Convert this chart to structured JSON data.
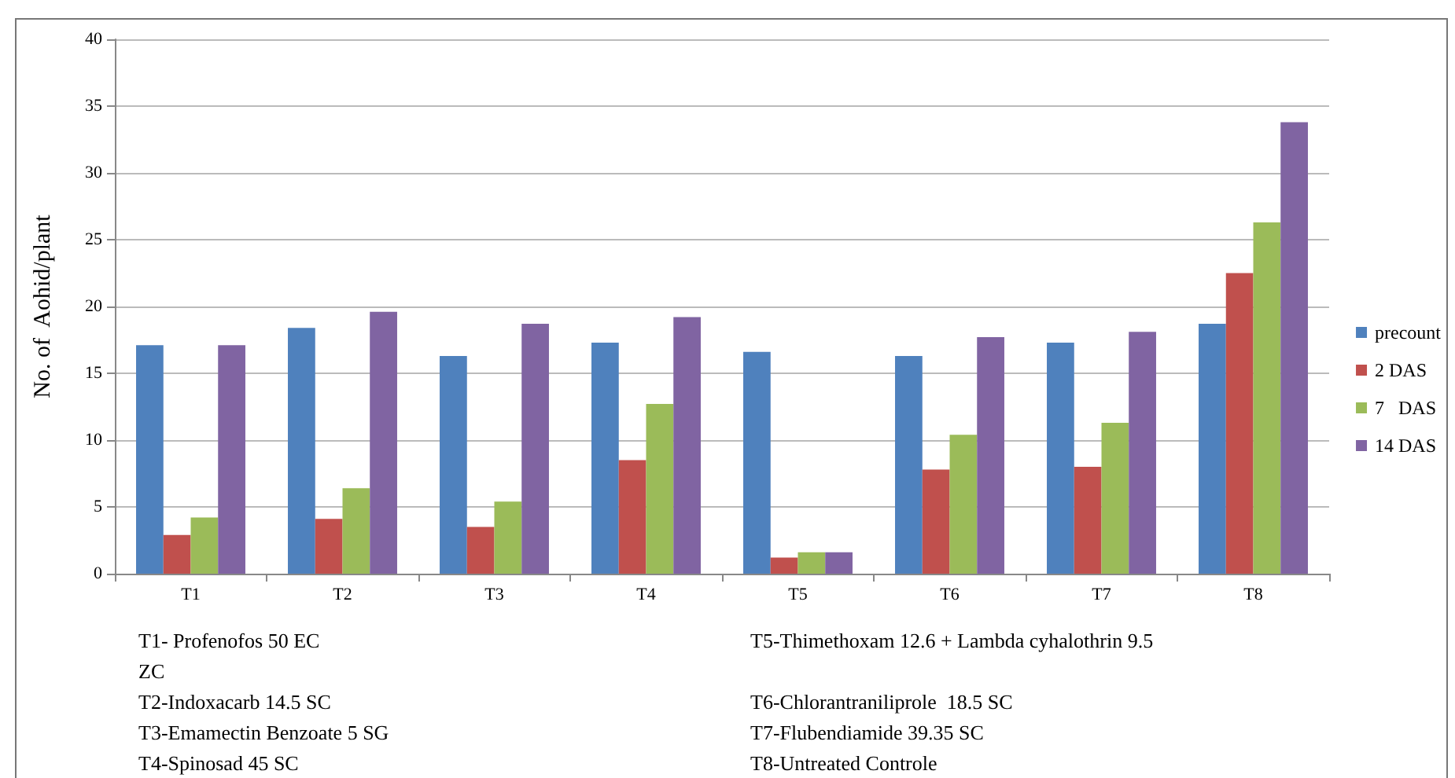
{
  "chart_data": {
    "type": "bar",
    "ylabel": "No. of  Aohid/plant",
    "categories": [
      "T1",
      "T2",
      "T3",
      "T4",
      "T5",
      "T6",
      "T7",
      "T8"
    ],
    "series": [
      {
        "name": "precount",
        "color": "#4f81bd",
        "values": [
          17.1,
          18.4,
          16.3,
          17.3,
          16.6,
          16.3,
          17.3,
          18.7
        ]
      },
      {
        "name": "2 DAS",
        "color": "#c0504d",
        "values": [
          2.9,
          4.1,
          3.5,
          8.5,
          1.2,
          7.8,
          8.0,
          22.5
        ]
      },
      {
        "name": "7   DAS",
        "color": "#9bbb59",
        "values": [
          4.2,
          6.4,
          5.4,
          12.7,
          1.6,
          10.4,
          11.3,
          26.3
        ]
      },
      {
        "name": "14 DAS",
        "color": "#8064a2",
        "values": [
          17.1,
          19.6,
          18.7,
          19.2,
          1.6,
          17.7,
          18.1,
          33.8
        ]
      }
    ],
    "ylim": [
      0,
      40
    ],
    "yticks": [
      0,
      5,
      10,
      15,
      20,
      25,
      30,
      35,
      40
    ],
    "grid": "y",
    "legend": "right",
    "annotations": [
      "T1- Profenofos 50 EC",
      "ZC",
      "T2-Indoxacarb 14.5 SC",
      "T3-Emamectin Benzoate 5 SG",
      "T4-Spinosad 45 SC",
      "T5-Thimethoxam 12.6 + Lambda cyhalothrin 9.5",
      "T6-Chlorantraniliprole  18.5 SC",
      "T7-Flubendiamide 39.35 SC",
      "T8-Untreated Controle"
    ]
  }
}
